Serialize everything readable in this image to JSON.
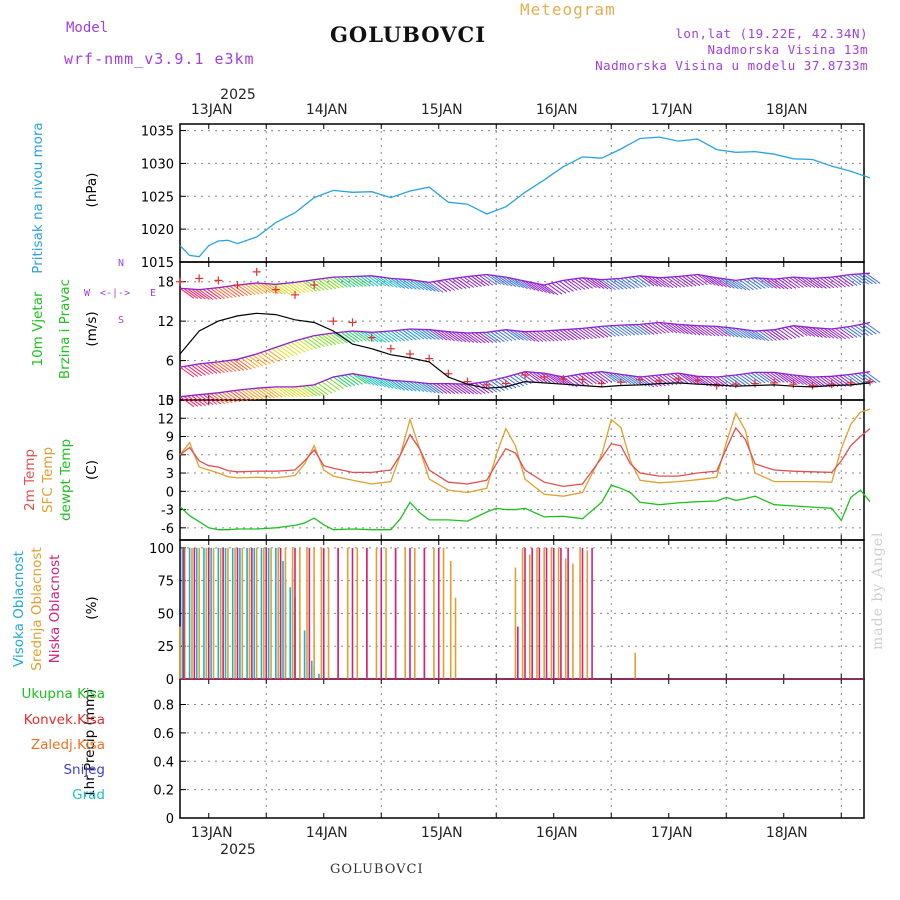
{
  "header": {
    "model_label": "Model",
    "model_name": "wrf-nmm_v3.9.1 e3km",
    "station": "GOLUBOVCI",
    "title": "Meteogram",
    "lonlat": "lon,lat (19.22E, 42.34N)",
    "altitude": "Nadmorska Visina 13m",
    "model_altitude": "Nadmorska Visina u modelu 37.8733m"
  },
  "footer": {
    "station": "GOLUBOVCI",
    "watermark": "made by Angel"
  },
  "time_axis": {
    "year": "2025",
    "days": [
      "13JAN",
      "14JAN",
      "15JAN",
      "16JAN",
      "17JAN",
      "18JAN"
    ],
    "start_hour_offset": 6,
    "total_hours": 144
  },
  "colors": {
    "pressure": "#2aa3e0",
    "wind_black": "#000000",
    "wind_gust": "#e03030",
    "wind_dir": "#9020d0",
    "temp2m": "#e05050",
    "sfc_temp": "#e0a030",
    "dewpoint": "#20c020",
    "cloud_high": "#20b0d0",
    "cloud_mid": "#e0a030",
    "cloud_low": "#d02080",
    "precip_total": "#20c020",
    "precip_conv": "#e03030",
    "precip_frz": "#f07020",
    "precip_snow": "#4040e0",
    "precip_hail": "#20c0c0"
  },
  "panels": {
    "pressure": {
      "label": "Pritisak na nivou mora",
      "unit": "(hPa)"
    },
    "wind": {
      "label1": "10m Vjetar",
      "label2": "Brzina i Pravac",
      "unit": "(m/s)",
      "compass_top": "N",
      "compass_left": "W",
      "compass_right": "E",
      "compass_bottom": "S"
    },
    "temp": {
      "label1": "2m Temp",
      "label2": "SFC Temp",
      "label3": "dewpt Temp",
      "unit": "(C)"
    },
    "cloud": {
      "label1": "Visoka Oblacnost",
      "label2": "Srednja Oblacnost",
      "label3": "Niska Oblacnost",
      "unit": "(%)"
    },
    "precip": {
      "unit": "1hr Precip (mm)",
      "legend": [
        "Ukupna Kisa",
        "Konvek.Kisa",
        "Zaledj.Kisa",
        "Snijeg",
        "Grad"
      ]
    }
  },
  "chart_data": [
    {
      "type": "line",
      "title": "Pritisak na nivou mora",
      "ylabel": "(hPa)",
      "ylim": [
        1015,
        1036
      ],
      "yticks": [
        1015,
        1020,
        1025,
        1030,
        1035
      ],
      "x_hours": [
        0,
        2,
        4,
        6,
        8,
        10,
        12,
        16,
        20,
        24,
        28,
        32,
        36,
        40,
        44,
        48,
        52,
        56,
        60,
        64,
        68,
        72,
        76,
        80,
        84,
        88,
        92,
        96,
        100,
        104,
        108,
        112,
        116,
        120,
        124,
        128,
        132,
        136,
        140,
        144
      ],
      "series": [
        {
          "name": "pressure",
          "values": [
            1017.5,
            1016,
            1015.8,
            1017.5,
            1018.2,
            1018.3,
            1017.8,
            1018.8,
            1021,
            1022.5,
            1024.8,
            1025.9,
            1025.6,
            1025.7,
            1024.8,
            1025.8,
            1026.4,
            1024.1,
            1023.8,
            1022.3,
            1023.4,
            1025.6,
            1027.5,
            1029.5,
            1031,
            1030.8,
            1032.2,
            1033.8,
            1034,
            1033.4,
            1033.7,
            1032.1,
            1031.7,
            1031.8,
            1031.4,
            1030.7,
            1030.6,
            1029.6,
            1028.8,
            1027.8
          ]
        }
      ]
    },
    {
      "type": "line",
      "title": "10m Vjetar Brzina i Pravac",
      "ylabel": "(m/s)",
      "ylim": [
        0,
        21
      ],
      "yticks": [
        0,
        6,
        12,
        18
      ],
      "x_hours": [
        0,
        4,
        8,
        12,
        16,
        20,
        24,
        28,
        32,
        36,
        40,
        44,
        48,
        52,
        56,
        60,
        64,
        68,
        72,
        76,
        80,
        84,
        88,
        92,
        96,
        100,
        104,
        108,
        112,
        116,
        120,
        124,
        128,
        132,
        136,
        140,
        144
      ],
      "series": [
        {
          "name": "wind_speed",
          "values": [
            7,
            10.5,
            12,
            12.8,
            13.2,
            13,
            12.2,
            11.8,
            10.5,
            8.5,
            7.8,
            6.9,
            6.4,
            5.8,
            3.5,
            2.4,
            1.8,
            2,
            2.8,
            2.6,
            2.4,
            2.2,
            2,
            2.2,
            2.3,
            2.5,
            2.6,
            2.4,
            2.3,
            2.1,
            2.2,
            2.3,
            2.1,
            2,
            2.2,
            2.3,
            2.6
          ]
        },
        {
          "name": "wind_gust",
          "values": [
            18,
            18.5,
            18.2,
            17.5,
            19.5,
            16.8,
            16,
            17.5,
            12,
            11.8,
            9.5,
            7.8,
            7,
            6.3,
            4,
            2.8,
            2.3,
            2.5,
            3.8,
            3.5,
            3.2,
            3.1,
            2.5,
            2.7,
            3.1,
            2.9,
            3.2,
            3,
            2.2,
            2.4,
            2.5,
            2.6,
            2.4,
            2.2,
            2.4,
            2.6,
            2.8
          ]
        },
        {
          "name": "direction_low",
          "values": [
            0.5,
            0.8,
            1.1,
            1.5,
            1.8,
            2,
            2,
            2.3,
            3.5,
            4,
            3.5,
            3,
            2.8,
            2.5,
            2.5,
            2.4,
            2.8,
            3.5,
            4.3,
            4.1,
            3.5,
            4,
            4.3,
            3.9,
            3.5,
            3.8,
            4.1,
            3.6,
            3.5,
            3.8,
            4.2,
            4.2,
            3.8,
            3.5,
            3.6,
            3.9,
            4.3
          ]
        },
        {
          "name": "direction_mid",
          "values": [
            5,
            5.5,
            5.8,
            6.2,
            7,
            8,
            9,
            9.8,
            10.2,
            10.5,
            10.3,
            10.5,
            10.8,
            10.7,
            10.4,
            10.2,
            10.3,
            10.7,
            10.4,
            10.5,
            10.7,
            10.9,
            11.2,
            11.4,
            11.5,
            11.8,
            11.5,
            11.3,
            11.2,
            10.9,
            10.5,
            10.7,
            11.3,
            11,
            10.8,
            11.2,
            11.8
          ]
        },
        {
          "name": "direction_high",
          "values": [
            17,
            16.8,
            17.1,
            17.5,
            17.8,
            17.6,
            17.9,
            18.3,
            18.7,
            18.8,
            18.9,
            18.5,
            18.3,
            17.9,
            18.4,
            18.8,
            19.1,
            18.7,
            18.1,
            17.5,
            18.2,
            18.6,
            18.3,
            18.5,
            18.9,
            18.6,
            18.8,
            19.1,
            18.6,
            18.2,
            18.6,
            18.4,
            18.7,
            18.5,
            18.7,
            19.1,
            19.3
          ]
        }
      ]
    },
    {
      "type": "line",
      "title": "2m Temp / SFC Temp / dewpt Temp",
      "ylabel": "(C)",
      "ylim": [
        -8,
        15
      ],
      "yticks": [
        -6,
        -3,
        0,
        3,
        6,
        9,
        12,
        15
      ],
      "x_hours": [
        0,
        2,
        4,
        6,
        8,
        10,
        12,
        16,
        20,
        24,
        26,
        28,
        30,
        32,
        36,
        40,
        44,
        46,
        48,
        50,
        52,
        56,
        60,
        64,
        66,
        68,
        70,
        72,
        76,
        80,
        84,
        88,
        90,
        92,
        94,
        96,
        100,
        104,
        108,
        112,
        114,
        116,
        118,
        120,
        124,
        128,
        132,
        136,
        138,
        140,
        142,
        144
      ],
      "series": [
        {
          "name": "2m Temp",
          "values": [
            6,
            7.2,
            5,
            4.2,
            4,
            3.4,
            3.2,
            3.3,
            3.3,
            3.5,
            5,
            6.8,
            4.2,
            3.8,
            3.1,
            3.1,
            3.5,
            6,
            9.3,
            7,
            3.5,
            1.5,
            1.2,
            1.8,
            4.5,
            7,
            6.3,
            3.5,
            1.5,
            0.8,
            1.2,
            5.5,
            7.8,
            7.5,
            4.5,
            3,
            2.5,
            2.5,
            3,
            3.3,
            7,
            10.4,
            8.5,
            4.5,
            3.5,
            3.3,
            3.2,
            3.1,
            5,
            7.5,
            9,
            10.3
          ]
        },
        {
          "name": "SFC Temp",
          "values": [
            6,
            8,
            4,
            3.5,
            3,
            2.4,
            2.2,
            2.3,
            2.2,
            2.6,
            4.5,
            7.5,
            3.5,
            2.5,
            1.8,
            1.2,
            1.6,
            6,
            11.8,
            7,
            2,
            0.2,
            -0.2,
            0.5,
            6,
            10.3,
            7.5,
            2,
            -0.5,
            -0.8,
            -0.2,
            6,
            11.8,
            10.5,
            5,
            1.8,
            1.4,
            1.6,
            1.9,
            2.3,
            8,
            12.8,
            10,
            3,
            1.6,
            1.6,
            1.6,
            1.5,
            7,
            11,
            13,
            13.5
          ]
        },
        {
          "name": "dewpt Temp",
          "values": [
            -2.5,
            -4,
            -5,
            -6,
            -6.3,
            -6.3,
            -6.2,
            -6.2,
            -6,
            -5.6,
            -5.2,
            -4.4,
            -5.5,
            -6.3,
            -6.2,
            -6.3,
            -6.3,
            -4.5,
            -1.8,
            -3.5,
            -4.7,
            -4.7,
            -4.9,
            -3.4,
            -2.8,
            -3,
            -3,
            -2.8,
            -4.2,
            -4.1,
            -4.5,
            -1.8,
            1,
            0.5,
            -0.2,
            -1.8,
            -2.2,
            -1.9,
            -1.7,
            -1.6,
            -1,
            -1.5,
            -1.2,
            -0.8,
            -2.2,
            -2.4,
            -2.6,
            -2.8,
            -4.8,
            -1,
            0.2,
            -1.7
          ]
        }
      ]
    },
    {
      "type": "bar",
      "title": "Visoka / Srednja / Niska Oblacnost",
      "ylabel": "(%)",
      "ylim": [
        0,
        106
      ],
      "yticks": [
        0,
        25,
        50,
        75,
        100
      ],
      "series": [
        {
          "name": "Visoka Oblacnost",
          "x_hours": [
            0.5,
            2,
            3.5,
            5,
            6.5,
            8,
            9.5,
            11,
            12.5,
            14,
            15.5,
            17,
            18.5,
            20,
            21,
            21.5,
            22,
            23,
            23.5,
            24,
            25,
            26,
            27.5,
            28,
            29
          ],
          "values": [
            100,
            100,
            100,
            100,
            100,
            100,
            100,
            100,
            100,
            100,
            100,
            100,
            100,
            100,
            72,
            90,
            75,
            70,
            85,
            62,
            40,
            37,
            14,
            10,
            4
          ]
        },
        {
          "name": "Srednja Oblacnost",
          "x_hours": [
            0,
            1,
            2.5,
            4,
            5.5,
            7,
            8.5,
            10,
            11.5,
            13,
            14.5,
            16,
            17.5,
            19,
            20.5,
            22,
            23.5,
            25,
            26.5,
            28,
            29.5,
            31,
            33,
            35,
            37,
            39,
            41,
            43,
            45,
            47,
            49,
            51,
            53,
            55,
            56.5,
            57.5,
            70,
            71.5,
            73,
            74.5,
            76,
            77.5,
            79,
            80.5,
            82,
            83.5,
            85,
            95
          ],
          "values": [
            40,
            100,
            100,
            100,
            100,
            100,
            100,
            100,
            100,
            100,
            100,
            100,
            100,
            100,
            100,
            100,
            100,
            100,
            100,
            100,
            100,
            100,
            100,
            100,
            100,
            100,
            100,
            100,
            100,
            100,
            100,
            100,
            100,
            100,
            90,
            62,
            85,
            100,
            95,
            100,
            100,
            100,
            100,
            92,
            88,
            100,
            98,
            20
          ]
        },
        {
          "name": "Niska Oblacnost",
          "x_hours": [
            0.8,
            3,
            6,
            9,
            12,
            15,
            18,
            21,
            24,
            27,
            30,
            33,
            36,
            39,
            42,
            45,
            48,
            51,
            54,
            70.5,
            72,
            73.5,
            75,
            76.5,
            78,
            79.5,
            81,
            84,
            86
          ],
          "values": [
            100,
            100,
            100,
            100,
            100,
            100,
            100,
            100,
            100,
            100,
            100,
            100,
            100,
            100,
            100,
            100,
            100,
            100,
            100,
            40,
            100,
            100,
            100,
            100,
            100,
            100,
            100,
            100,
            100
          ]
        }
      ]
    },
    {
      "type": "bar",
      "title": "1hr Precip",
      "ylabel": "1hr Precip (mm)",
      "ylim": [
        0,
        0.98
      ],
      "yticks": [
        0,
        0.2,
        0.4,
        0.6,
        0.8
      ],
      "series": [
        {
          "name": "Ukupna Kisa",
          "values": []
        },
        {
          "name": "Konvek.Kisa",
          "values": []
        },
        {
          "name": "Zaledj.Kisa",
          "values": []
        },
        {
          "name": "Snijeg",
          "values": []
        },
        {
          "name": "Grad",
          "values": []
        }
      ]
    }
  ]
}
